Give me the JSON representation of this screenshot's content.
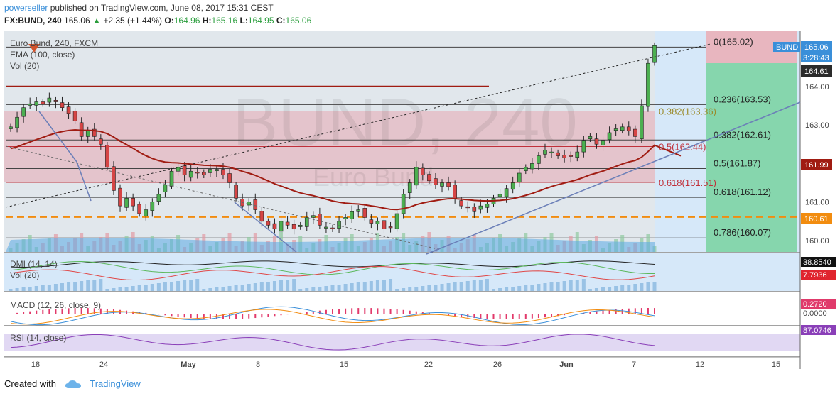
{
  "header": {
    "user": "powerseller",
    "published_text": "published on TradingView.com, June 08, 2017 15:31 CEST",
    "symbol_line": "FX:BUND, 240",
    "last": "165.06",
    "change": "+2.35 (+1.44%)",
    "ohlc": {
      "o_label": "O:",
      "o": "164.96",
      "h_label": "H:",
      "h": "165.16",
      "l_label": "L:",
      "l": "164.95",
      "c_label": "C:",
      "c": "165.06"
    }
  },
  "legend": {
    "title": "Euro Bund, 240, FXCM",
    "ema": "EMA (100, close)",
    "vol": "Vol (20)",
    "watermark_main": "BUND, 240",
    "watermark_sub": "Euro Bund"
  },
  "panes": {
    "dmi_label": "DMI (14, 14)",
    "dmi_vol_label": "Vol (20)",
    "macd_label": "MACD (12, 26, close, 9)",
    "rsi_label": "RSI (14, close)"
  },
  "footer": {
    "created_with": "Created with",
    "brand": "TradingView"
  },
  "chart_data": {
    "type": "candlestick",
    "timeframe": "240",
    "y_ticks": [
      160.0,
      161.0,
      162.0,
      163.0,
      164.0
    ],
    "y_tick_labels": [
      "160.00",
      "161.00",
      "162.00",
      "163.00",
      "164.00"
    ],
    "x_ticks": [
      "18",
      "24",
      "May",
      "8",
      "15",
      "22",
      "26",
      "Jun",
      "7",
      "12",
      "15"
    ],
    "price_badges": [
      {
        "label": "165.06",
        "sub": "3:28:43",
        "color": "#3a8fd9"
      },
      {
        "label": "164.61",
        "color": "#2b2b2b"
      },
      {
        "label": "161.99",
        "color": "#a01c12"
      },
      {
        "label": "160.61",
        "color": "#f28c0f"
      }
    ],
    "fib_levels": [
      {
        "ratio": "0",
        "price": 165.02,
        "label": "0(165.02)"
      },
      {
        "ratio": "0.236",
        "price": 163.53,
        "label": "0.236(163.53)"
      },
      {
        "ratio": "0.382",
        "price": 162.61,
        "label": "0.382(162.61)"
      },
      {
        "ratio": "0.5",
        "price": 161.87,
        "label": "0.5(161.87)"
      },
      {
        "ratio": "0.618",
        "price": 161.12,
        "label": "0.618(161.12)"
      },
      {
        "ratio": "0.786",
        "price": 160.07,
        "label": "0.786(160.07)"
      }
    ],
    "fib_levels_secondary": [
      {
        "price": 163.36,
        "label": "0.382(163.36)",
        "color": "#9a8a2a"
      },
      {
        "price": 162.44,
        "label": "0.5(162.44)",
        "color": "#c0303a"
      },
      {
        "price": 161.51,
        "label": "0.618(161.51)",
        "color": "#c0303a"
      }
    ],
    "horizontal_lines": [
      {
        "price": 164.0,
        "color": "#a01c12",
        "style": "solid"
      },
      {
        "price": 160.61,
        "color": "#f28c0f",
        "style": "dashed"
      }
    ],
    "close_series": [
      162.95,
      163.2,
      163.45,
      163.55,
      163.6,
      163.55,
      163.7,
      163.6,
      163.45,
      163.3,
      163.1,
      162.7,
      162.85,
      162.7,
      162.5,
      161.9,
      161.3,
      160.9,
      161.1,
      160.9,
      160.7,
      160.8,
      161.0,
      161.2,
      161.45,
      161.8,
      161.9,
      161.7,
      161.8,
      161.75,
      161.7,
      161.85,
      161.85,
      161.7,
      161.5,
      161.1,
      160.9,
      161.0,
      160.8,
      160.5,
      160.4,
      160.3,
      160.5,
      160.4,
      160.3,
      160.4,
      160.6,
      160.65,
      160.4,
      160.35,
      160.3,
      160.5,
      160.6,
      160.75,
      160.8,
      160.6,
      160.45,
      160.5,
      160.3,
      160.35,
      160.7,
      161.2,
      161.5,
      161.9,
      161.7,
      161.55,
      161.45,
      161.5,
      161.4,
      161.1,
      160.9,
      160.85,
      160.75,
      160.9,
      160.95,
      161.1,
      161.2,
      161.35,
      161.5,
      161.75,
      161.9,
      162.0,
      162.2,
      162.35,
      162.3,
      162.2,
      162.15,
      162.2,
      162.3,
      162.6,
      162.7,
      162.5,
      162.6,
      162.8,
      162.9,
      162.95,
      162.85,
      162.7,
      163.5,
      164.6,
      165.06
    ]
  },
  "dmi_values": {
    "di_plus": "38.8540",
    "di_minus": "7.7936"
  },
  "macd_values": {
    "hist": "0.2720",
    "zero": "0.0000"
  },
  "rsi_values": {
    "rsi": "87.0746"
  },
  "colors": {
    "up": "#4caf50",
    "down": "#333333",
    "ema": "#a01c12",
    "fib_box": "#d8a0a8",
    "target_box": "#7ed0a8",
    "target_top_box": "#e8b6bf",
    "future_zone": "#cfe5f8",
    "axis_bg": "#ffffff"
  }
}
